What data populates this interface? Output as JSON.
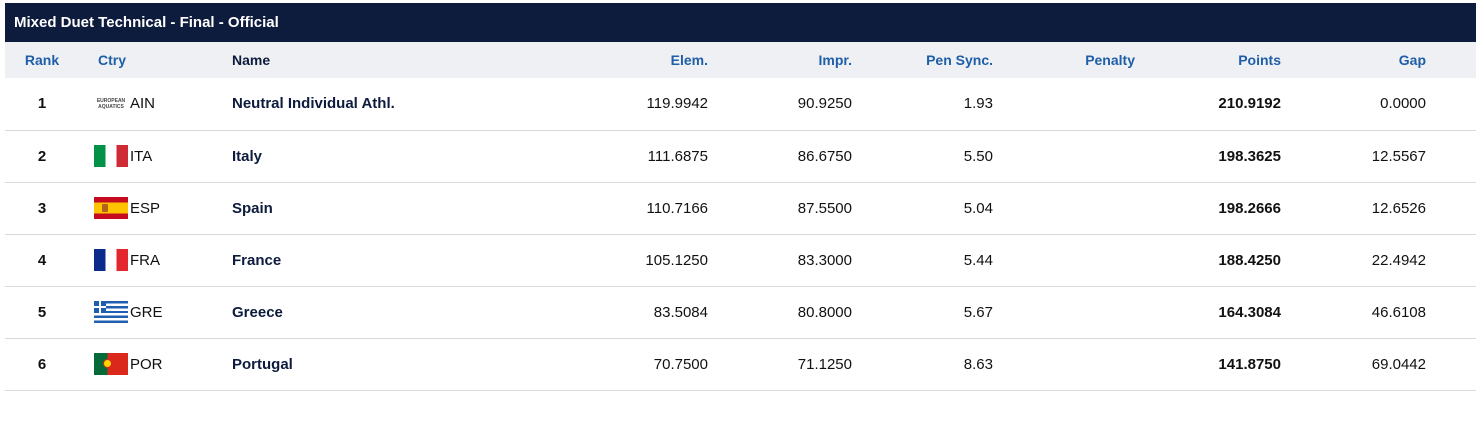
{
  "title": "Mixed Duet Technical - Final  -  Official",
  "columns": {
    "rank": "Rank",
    "ctry": "Ctry",
    "name": "Name",
    "elem": "Elem.",
    "impr": "Impr.",
    "pen_sync": "Pen Sync.",
    "penalty": "Penalty",
    "points": "Points",
    "gap": "Gap"
  },
  "rows": [
    {
      "rank": "1",
      "flag": "ain",
      "flag_line1": "EUROPEAN",
      "flag_line2": "AQUATICS",
      "ctry": "AIN",
      "name": "Neutral Individual Athl.",
      "elem": "119.9942",
      "impr": "90.9250",
      "pen_sync": "1.93",
      "penalty": "",
      "points": "210.9192",
      "gap": "0.0000"
    },
    {
      "rank": "2",
      "flag": "it",
      "ctry": "ITA",
      "name": "Italy",
      "elem": "111.6875",
      "impr": "86.6750",
      "pen_sync": "5.50",
      "penalty": "",
      "points": "198.3625",
      "gap": "12.5567"
    },
    {
      "rank": "3",
      "flag": "es",
      "ctry": "ESP",
      "name": "Spain",
      "elem": "110.7166",
      "impr": "87.5500",
      "pen_sync": "5.04",
      "penalty": "",
      "points": "198.2666",
      "gap": "12.6526"
    },
    {
      "rank": "4",
      "flag": "fr",
      "ctry": "FRA",
      "name": "France",
      "elem": "105.1250",
      "impr": "83.3000",
      "pen_sync": "5.44",
      "penalty": "",
      "points": "188.4250",
      "gap": "22.4942"
    },
    {
      "rank": "5",
      "flag": "gr",
      "ctry": "GRE",
      "name": "Greece",
      "elem": "83.5084",
      "impr": "80.8000",
      "pen_sync": "5.67",
      "penalty": "",
      "points": "164.3084",
      "gap": "46.6108"
    },
    {
      "rank": "6",
      "flag": "pt",
      "ctry": "POR",
      "name": "Portugal",
      "elem": "70.7500",
      "impr": "71.1250",
      "pen_sync": "8.63",
      "penalty": "",
      "points": "141.8750",
      "gap": "69.0442"
    }
  ]
}
